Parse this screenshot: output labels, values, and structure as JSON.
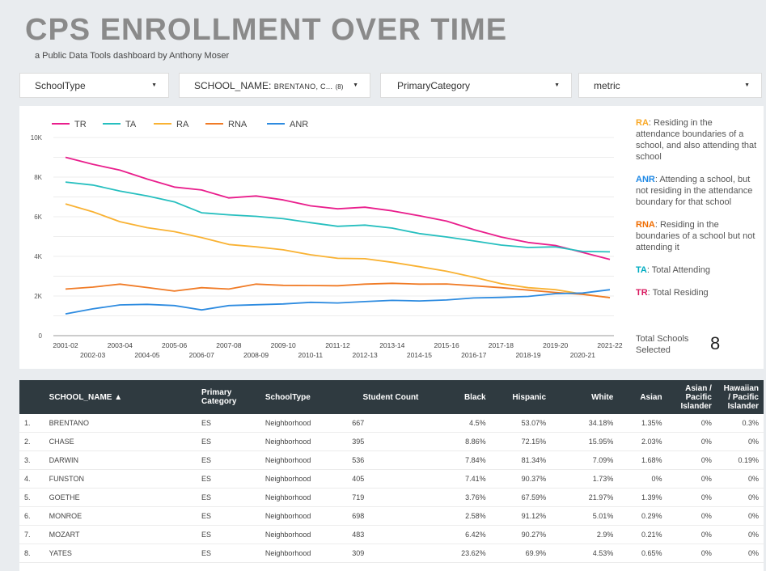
{
  "header": {
    "title": "CPS ENROLLMENT OVER TIME",
    "subtitle": "a Public Data Tools dashboard by Anthony Moser"
  },
  "filters": {
    "school_type": "SchoolType",
    "school_name_label": "SCHOOL_NAME:",
    "school_name_value": "BRENTANO, C...",
    "school_name_count": "(8)",
    "primary_category": "PrimaryCategory",
    "metric": "metric",
    "arrow": "▼"
  },
  "chart_data": {
    "type": "line",
    "title": "",
    "xlabel": "",
    "ylabel": "",
    "ylim": [
      0,
      10000
    ],
    "yticks": [
      0,
      2000,
      4000,
      6000,
      8000,
      10000
    ],
    "ytick_labels": [
      "0",
      "2K",
      "4K",
      "6K",
      "8K",
      "10K"
    ],
    "x": [
      "2001-02",
      "2002-03",
      "2003-04",
      "2004-05",
      "2005-06",
      "2006-07",
      "2007-08",
      "2008-09",
      "2009-10",
      "2010-11",
      "2011-12",
      "2012-13",
      "2013-14",
      "2014-15",
      "2015-16",
      "2016-17",
      "2017-18",
      "2018-19",
      "2019-20",
      "2020-21",
      "2021-22"
    ],
    "series": [
      {
        "name": "TR",
        "color": "#e91e8c",
        "values": [
          9000,
          8650,
          8350,
          7900,
          7500,
          7350,
          6950,
          7050,
          6850,
          6550,
          6400,
          6480,
          6300,
          6050,
          5780,
          5350,
          4980,
          4700,
          4550,
          4200,
          3850
        ]
      },
      {
        "name": "TA",
        "color": "#26bfbf",
        "values": [
          7750,
          7600,
          7300,
          7050,
          6750,
          6200,
          6100,
          6020,
          5900,
          5700,
          5520,
          5580,
          5430,
          5150,
          4980,
          4780,
          4570,
          4450,
          4480,
          4250,
          4230
        ]
      },
      {
        "name": "RA",
        "color": "#f9b233",
        "values": [
          6650,
          6250,
          5750,
          5450,
          5250,
          4950,
          4600,
          4480,
          4330,
          4080,
          3900,
          3880,
          3700,
          3480,
          3250,
          2950,
          2620,
          2420,
          2320,
          2100,
          1920
        ]
      },
      {
        "name": "RNA",
        "color": "#f07b26",
        "values": [
          2350,
          2450,
          2600,
          2430,
          2250,
          2420,
          2350,
          2600,
          2540,
          2530,
          2520,
          2600,
          2640,
          2600,
          2610,
          2520,
          2420,
          2300,
          2180,
          2080,
          1920
        ]
      },
      {
        "name": "ANR",
        "color": "#2d8be0",
        "values": [
          1100,
          1350,
          1550,
          1580,
          1520,
          1300,
          1520,
          1560,
          1600,
          1680,
          1650,
          1720,
          1780,
          1750,
          1800,
          1900,
          1930,
          1980,
          2120,
          2150,
          2320
        ]
      }
    ]
  },
  "legend_notes": [
    {
      "key": "RA",
      "color": "#f9a825",
      "text": ": Residing in the attendance boundaries of a school, and also attending that school"
    },
    {
      "key": "ANR",
      "color": "#1e88e5",
      "text": ": Attending a school, but not residing in the attendance boundary for that school"
    },
    {
      "key": "RNA",
      "color": "#ef6c00",
      "text": ": Residing in the boundaries of a school but not attending it"
    },
    {
      "key": "TA",
      "color": "#00acc1",
      "text": ": Total Attending"
    },
    {
      "key": "TR",
      "color": "#d81b60",
      "text": ": Total Residing"
    }
  ],
  "total": {
    "label": "Total Schools Selected",
    "value": "8"
  },
  "table": {
    "headers": [
      "SCHOOL_NAME ▲",
      "Primary Category",
      "SchoolType",
      "Student Count",
      "Black",
      "Hispanic",
      "White",
      "Asian",
      "Asian / Pacific Islander",
      "Hawaiian / Pacific Islander"
    ],
    "rows": [
      [
        "1.",
        "BRENTANO",
        "ES",
        "Neighborhood",
        "667",
        "4.5%",
        "53.07%",
        "34.18%",
        "1.35%",
        "0%",
        "0.3%"
      ],
      [
        "2.",
        "CHASE",
        "ES",
        "Neighborhood",
        "395",
        "8.86%",
        "72.15%",
        "15.95%",
        "2.03%",
        "0%",
        "0%"
      ],
      [
        "3.",
        "DARWIN",
        "ES",
        "Neighborhood",
        "536",
        "7.84%",
        "81.34%",
        "7.09%",
        "1.68%",
        "0%",
        "0.19%"
      ],
      [
        "4.",
        "FUNSTON",
        "ES",
        "Neighborhood",
        "405",
        "7.41%",
        "90.37%",
        "1.73%",
        "0%",
        "0%",
        "0%"
      ],
      [
        "5.",
        "GOETHE",
        "ES",
        "Neighborhood",
        "719",
        "3.76%",
        "67.59%",
        "21.97%",
        "1.39%",
        "0%",
        "0%"
      ],
      [
        "6.",
        "MONROE",
        "ES",
        "Neighborhood",
        "698",
        "2.58%",
        "91.12%",
        "5.01%",
        "0.29%",
        "0%",
        "0%"
      ],
      [
        "7.",
        "MOZART",
        "ES",
        "Neighborhood",
        "483",
        "6.42%",
        "90.27%",
        "2.9%",
        "0.21%",
        "0%",
        "0%"
      ],
      [
        "8.",
        "YATES",
        "ES",
        "Neighborhood",
        "309",
        "23.62%",
        "69.9%",
        "4.53%",
        "0.65%",
        "0%",
        "0%"
      ]
    ]
  }
}
